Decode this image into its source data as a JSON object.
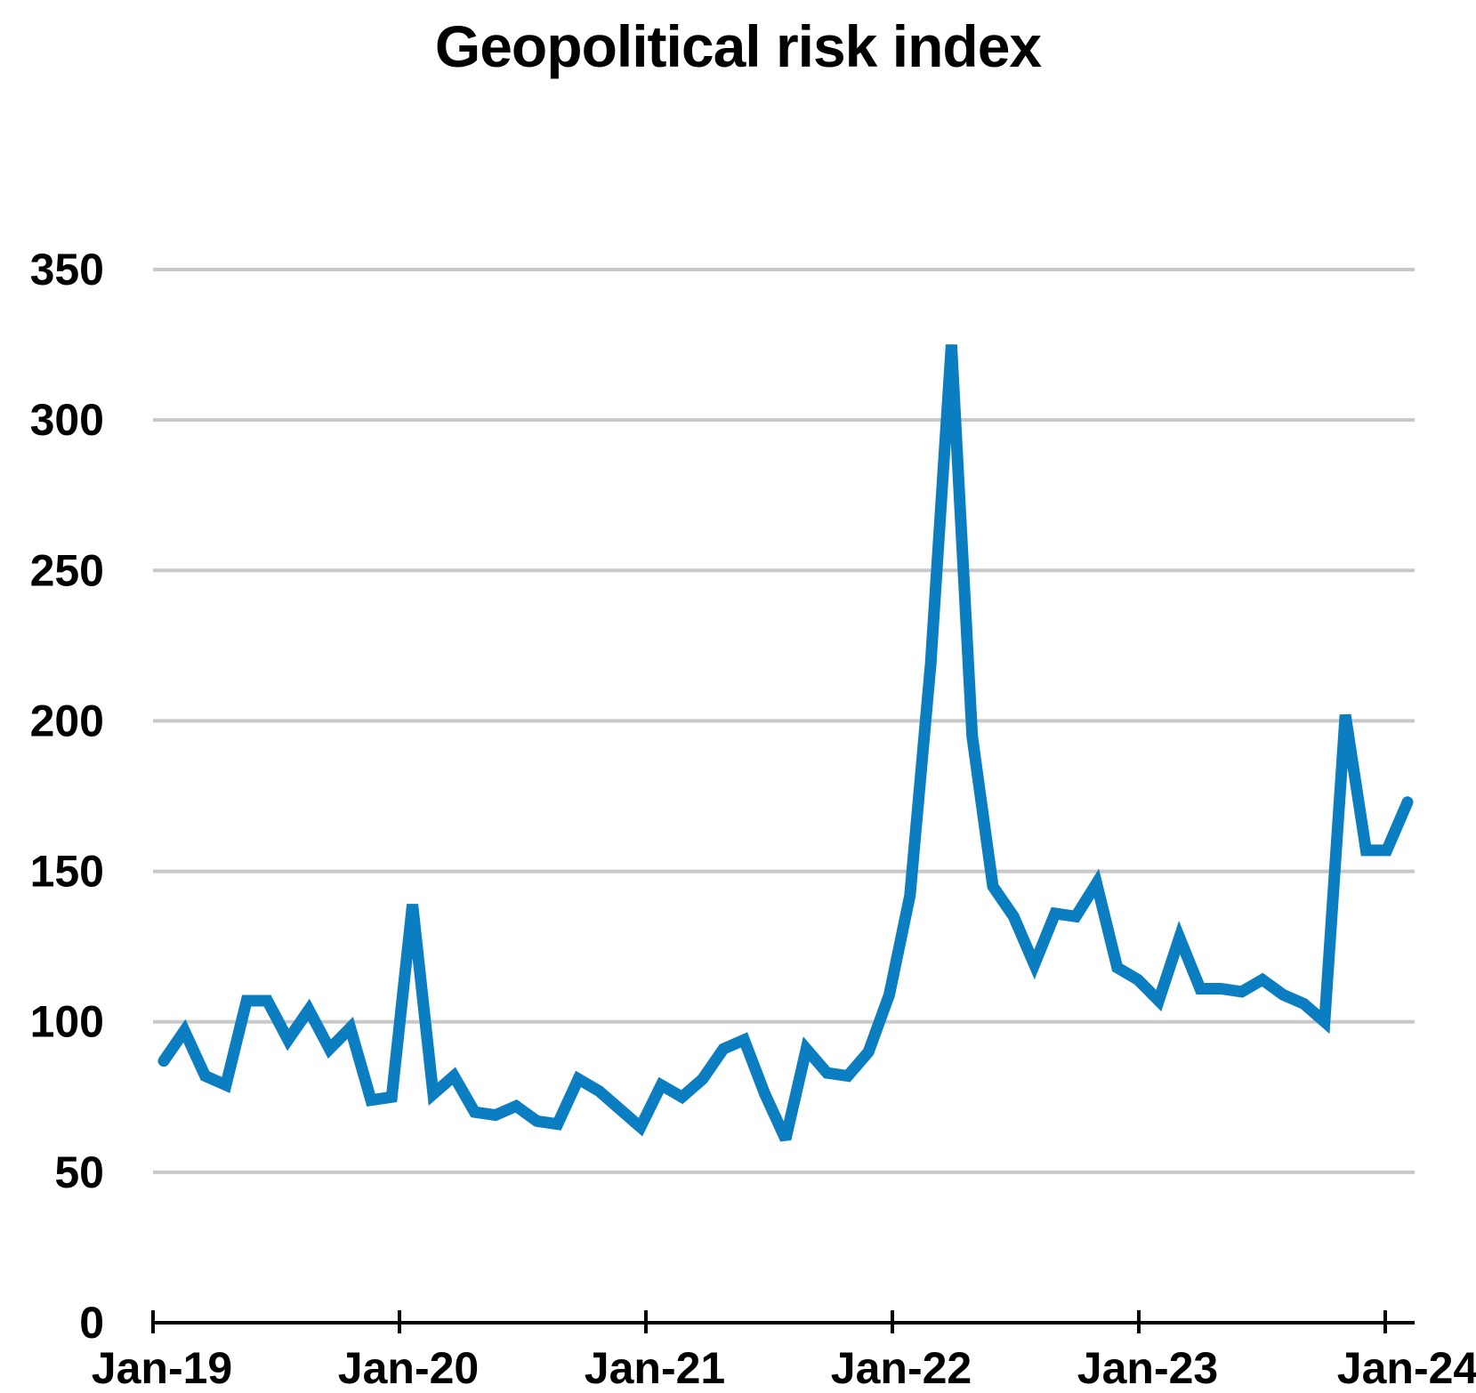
{
  "chart_data": {
    "type": "line",
    "title": "Geopolitical risk index",
    "xlabel": "",
    "ylabel": "",
    "ylim": [
      0,
      350
    ],
    "yticks": [
      0,
      50,
      100,
      150,
      200,
      250,
      300,
      350
    ],
    "x_tick_labels": [
      "Jan-19",
      "Jan-20",
      "Jan-21",
      "Jan-22",
      "Jan-23",
      "Jan-24"
    ],
    "grid": true,
    "legend": "none",
    "x_start": "Jan-19",
    "x_unit": "month",
    "series": [
      {
        "name": "Geopolitical risk index",
        "color": "#0b7dc1",
        "values": [
          87,
          97,
          82,
          79,
          107,
          107,
          94,
          104,
          91,
          98,
          74,
          75,
          139,
          76,
          82,
          70,
          69,
          72,
          67,
          66,
          81,
          77,
          71,
          65,
          79,
          75,
          81,
          91,
          94,
          76,
          61,
          91,
          83,
          82,
          90,
          109,
          142,
          219,
          325,
          195,
          145,
          135,
          119,
          136,
          135,
          146,
          118,
          114,
          107,
          128,
          111,
          111,
          110,
          114,
          109,
          106,
          100,
          202,
          157,
          157,
          173
        ]
      }
    ]
  }
}
